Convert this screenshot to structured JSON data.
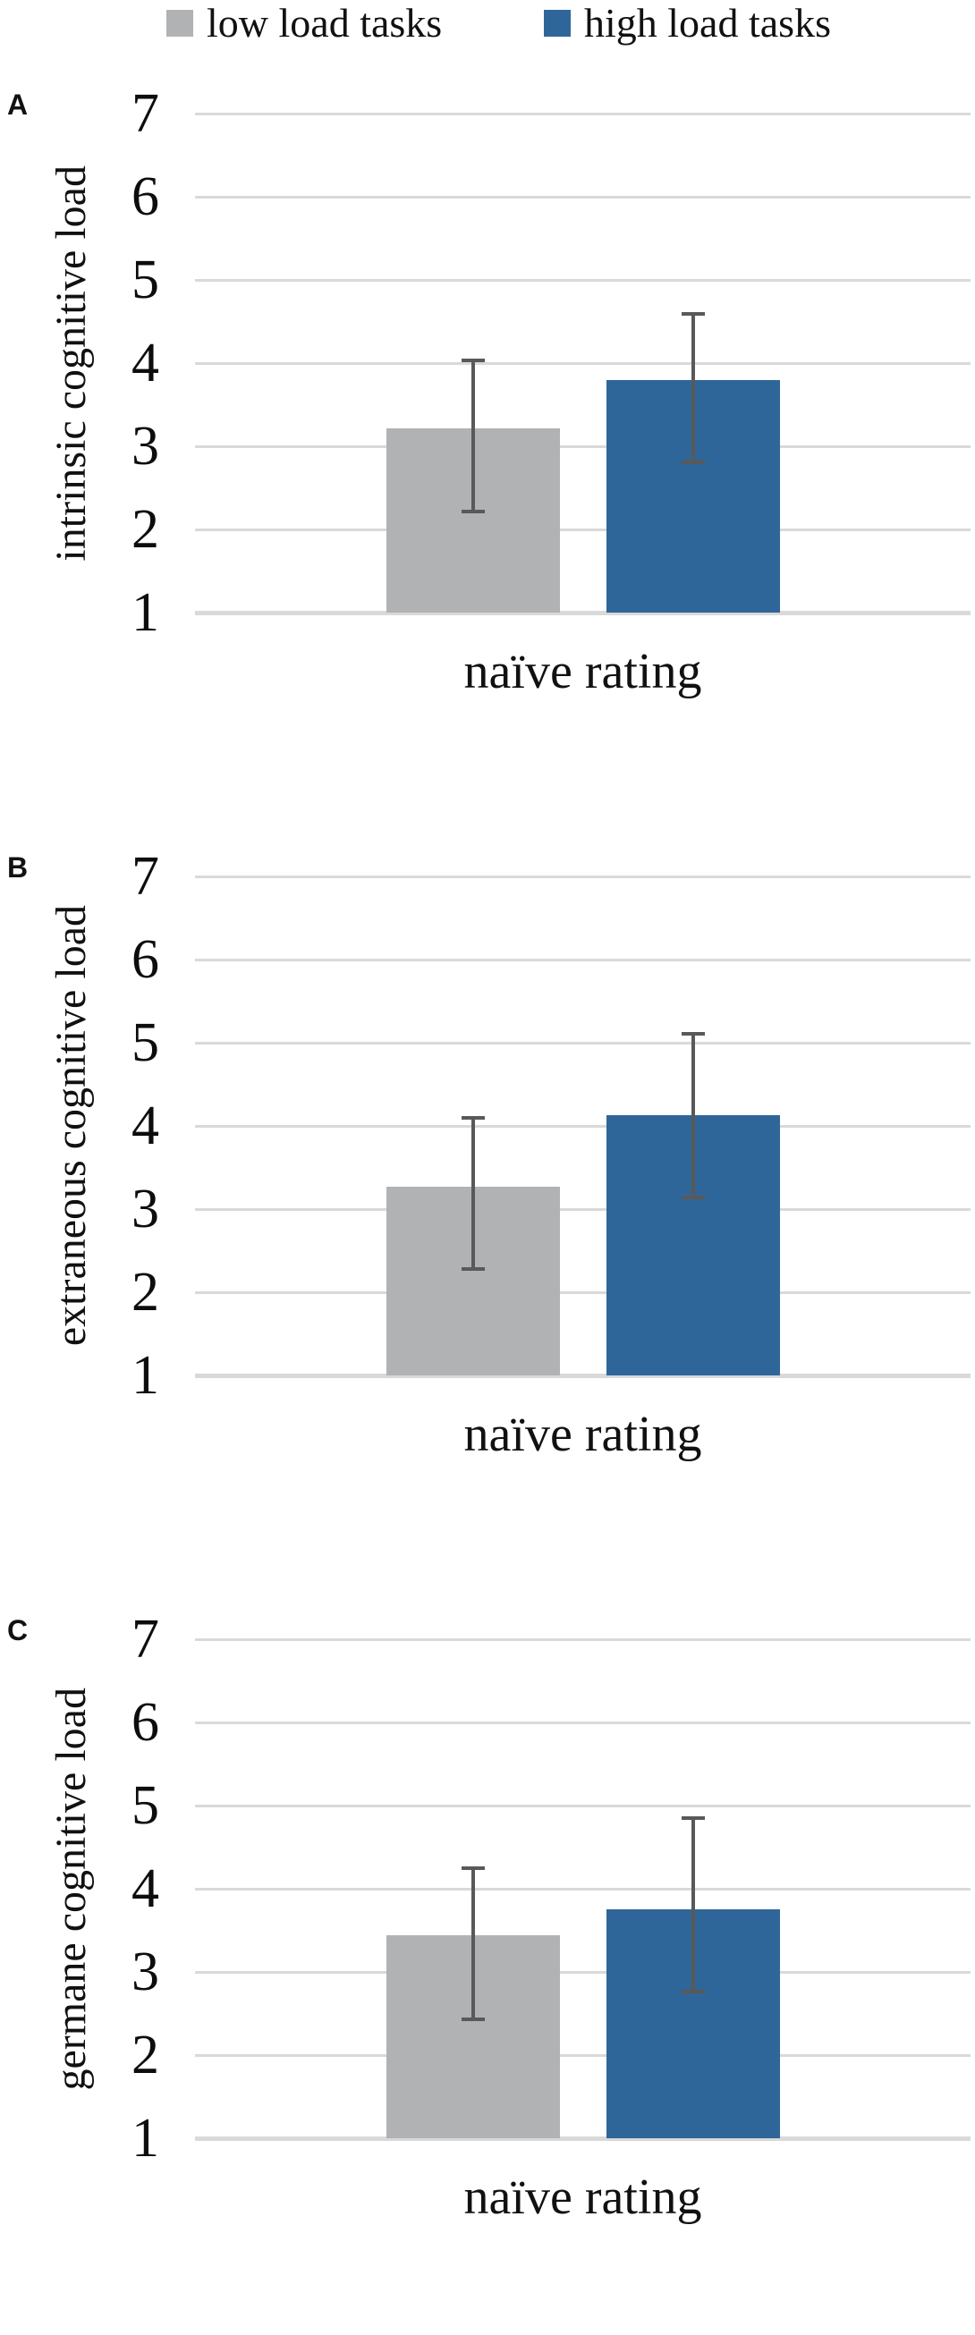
{
  "legend": {
    "items": [
      {
        "key": "low",
        "label": "low load tasks",
        "color": "#B1B2B4"
      },
      {
        "key": "high",
        "label": "high load tasks",
        "color": "#2F6699"
      }
    ]
  },
  "axis": {
    "gridline_color": "#D9D9D9",
    "error_bar_color": "#595959"
  },
  "chart_data": [
    {
      "type": "bar",
      "panel_label": "A",
      "ylabel": "intrinsic cognitive load",
      "xlabel": "naïve rating",
      "categories": [
        "naïve rating"
      ],
      "ylim": [
        1,
        7
      ],
      "yticks": [
        1,
        2,
        3,
        4,
        5,
        6,
        7
      ],
      "grid": true,
      "legend_position": "top",
      "series": [
        {
          "name": "low load tasks",
          "values": [
            3.22
          ],
          "error_low": [
            2.22
          ],
          "error_high": [
            4.03
          ]
        },
        {
          "name": "high load tasks",
          "values": [
            3.8
          ],
          "error_low": [
            2.81
          ],
          "error_high": [
            4.59
          ]
        }
      ]
    },
    {
      "type": "bar",
      "panel_label": "B",
      "ylabel": "extraneous cognitive load",
      "xlabel": "naïve rating",
      "categories": [
        "naïve rating"
      ],
      "ylim": [
        1,
        7
      ],
      "yticks": [
        1,
        2,
        3,
        4,
        5,
        6,
        7
      ],
      "grid": true,
      "legend_position": "top",
      "series": [
        {
          "name": "low load tasks",
          "values": [
            3.27
          ],
          "error_low": [
            2.28
          ],
          "error_high": [
            4.1
          ]
        },
        {
          "name": "high load tasks",
          "values": [
            4.13
          ],
          "error_low": [
            3.14
          ],
          "error_high": [
            5.11
          ]
        }
      ]
    },
    {
      "type": "bar",
      "panel_label": "C",
      "ylabel": "germane cognitive load",
      "xlabel": "naïve rating",
      "categories": [
        "naïve rating"
      ],
      "ylim": [
        1,
        7
      ],
      "yticks": [
        1,
        2,
        3,
        4,
        5,
        6,
        7
      ],
      "grid": true,
      "legend_position": "top",
      "series": [
        {
          "name": "low load tasks",
          "values": [
            3.44
          ],
          "error_low": [
            2.43
          ],
          "error_high": [
            4.25
          ]
        },
        {
          "name": "high load tasks",
          "values": [
            3.75
          ],
          "error_low": [
            2.76
          ],
          "error_high": [
            4.85
          ]
        }
      ]
    }
  ]
}
